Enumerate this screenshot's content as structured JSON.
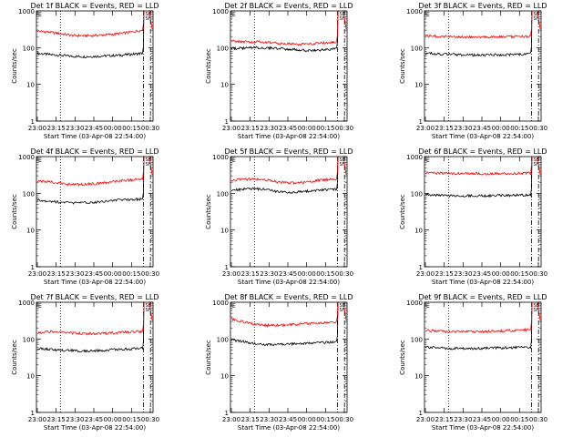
{
  "chart_data": [
    {
      "type": "line",
      "title": "Det 1f BLACK = Events, RED = LLD",
      "xlabel": "Start Time (03-Apr-08 22:54:00)",
      "ylabel": "Counts/sec",
      "x_ticklabels": [
        "23:00",
        "23:15",
        "23:30",
        "23:45",
        "00:00",
        "00:15",
        "00:30"
      ],
      "y_ticklabels": [
        "1",
        "10",
        "100",
        "1000"
      ],
      "yscale": "log",
      "ylim": [
        1,
        1000
      ],
      "series": [
        {
          "name": "Events",
          "color": "#000000",
          "values": [
            70,
            65,
            62,
            58,
            57,
            58,
            60,
            62,
            66,
            70
          ]
        },
        {
          "name": "LLD",
          "color": "#ff0000",
          "values": [
            280,
            265,
            240,
            215,
            210,
            215,
            225,
            240,
            265,
            300
          ]
        }
      ],
      "legend_marks": [
        "SE",
        "SF"
      ]
    },
    {
      "type": "line",
      "title": "Det 2f BLACK = Events, RED = LLD",
      "xlabel": "Start Time (03-Apr-08 22:54:00)",
      "ylabel": "Counts/sec",
      "x_ticklabels": [
        "23:00",
        "23:15",
        "23:30",
        "23:45",
        "00:00",
        "00:15",
        "00:30"
      ],
      "y_ticklabels": [
        "1",
        "10",
        "100",
        "1000"
      ],
      "yscale": "log",
      "ylim": [
        1,
        1000
      ],
      "series": [
        {
          "name": "Events",
          "color": "#000000",
          "values": [
            95,
            97,
            100,
            98,
            95,
            90,
            85,
            82,
            88,
            92
          ]
        },
        {
          "name": "LLD",
          "color": "#ff0000",
          "values": [
            150,
            145,
            145,
            140,
            130,
            125,
            125,
            128,
            135,
            140
          ]
        }
      ],
      "legend_marks": [
        "SE",
        "SF"
      ]
    },
    {
      "type": "line",
      "title": "Det 3f BLACK = Events, RED = LLD",
      "xlabel": "Start Time (03-Apr-08 22:54:00)",
      "ylabel": "Counts/sec",
      "x_ticklabels": [
        "23:00",
        "23:15",
        "23:30",
        "23:45",
        "00:00",
        "00:15",
        "00:30"
      ],
      "y_ticklabels": [
        "1",
        "10",
        "100",
        "1000"
      ],
      "yscale": "log",
      "ylim": [
        1,
        1000
      ],
      "series": [
        {
          "name": "Events",
          "color": "#000000",
          "values": [
            70,
            68,
            66,
            64,
            63,
            63,
            64,
            65,
            66,
            68
          ]
        },
        {
          "name": "LLD",
          "color": "#ff0000",
          "values": [
            210,
            205,
            200,
            195,
            195,
            195,
            195,
            200,
            200,
            205
          ]
        }
      ],
      "legend_marks": [
        "SE",
        "SF"
      ]
    },
    {
      "type": "line",
      "title": "Det 4f BLACK = Events, RED = LLD",
      "xlabel": "Start Time (03-Apr-08 22:54:00)",
      "ylabel": "Counts/sec",
      "x_ticklabels": [
        "23:00",
        "23:15",
        "23:30",
        "23:45",
        "00:00",
        "00:15",
        "00:30"
      ],
      "y_ticklabels": [
        "1",
        "10",
        "100",
        "1000"
      ],
      "yscale": "log",
      "ylim": [
        1,
        1000
      ],
      "series": [
        {
          "name": "Events",
          "color": "#000000",
          "values": [
            65,
            62,
            57,
            55,
            55,
            58,
            62,
            66,
            68,
            70
          ]
        },
        {
          "name": "LLD",
          "color": "#ff0000",
          "values": [
            220,
            205,
            185,
            175,
            175,
            185,
            200,
            215,
            230,
            245
          ]
        }
      ],
      "legend_marks": [
        "SE",
        "SF"
      ]
    },
    {
      "type": "line",
      "title": "Det 5f BLACK = Events, RED = LLD",
      "xlabel": "Start Time (03-Apr-08 22:54:00)",
      "ylabel": "Counts/sec",
      "x_ticklabels": [
        "23:00",
        "23:15",
        "23:30",
        "23:45",
        "00:00",
        "00:15",
        "00:30"
      ],
      "y_ticklabels": [
        "1",
        "10",
        "100",
        "1000"
      ],
      "yscale": "log",
      "ylim": [
        1,
        1000
      ],
      "series": [
        {
          "name": "Events",
          "color": "#000000",
          "values": [
            120,
            130,
            135,
            125,
            110,
            105,
            110,
            120,
            125,
            130
          ]
        },
        {
          "name": "LLD",
          "color": "#ff0000",
          "values": [
            230,
            240,
            245,
            230,
            205,
            190,
            195,
            215,
            235,
            250
          ]
        }
      ],
      "legend_marks": [
        "SE",
        "SF"
      ]
    },
    {
      "type": "line",
      "title": "Det 6f BLACK = Events, RED = LLD",
      "xlabel": "Start Time (03-Apr-08 22:54:00)",
      "ylabel": "Counts/sec",
      "x_ticklabels": [
        "23:00",
        "23:15",
        "23:30",
        "23:45",
        "00:00",
        "00:15",
        "00:30"
      ],
      "y_ticklabels": [
        "1",
        "10",
        "100",
        "1000"
      ],
      "yscale": "log",
      "ylim": [
        1,
        1000
      ],
      "series": [
        {
          "name": "Events",
          "color": "#000000",
          "values": [
            92,
            90,
            88,
            86,
            86,
            86,
            87,
            88,
            89,
            90
          ]
        },
        {
          "name": "LLD",
          "color": "#ff0000",
          "values": [
            360,
            355,
            350,
            345,
            345,
            345,
            345,
            348,
            350,
            352
          ]
        }
      ],
      "legend_marks": [
        "SE",
        "SF"
      ]
    },
    {
      "type": "line",
      "title": "Det 7f BLACK = Events, RED = LLD",
      "xlabel": "Start Time (03-Apr-08 22:54:00)",
      "ylabel": "Counts/sec",
      "x_ticklabels": [
        "23:00",
        "23:15",
        "23:30",
        "23:45",
        "00:00",
        "00:15",
        "00:30"
      ],
      "y_ticklabels": [
        "1",
        "10",
        "100",
        "1000"
      ],
      "yscale": "log",
      "ylim": [
        1,
        1000
      ],
      "series": [
        {
          "name": "Events",
          "color": "#000000",
          "values": [
            55,
            52,
            50,
            48,
            47,
            48,
            50,
            52,
            54,
            56
          ]
        },
        {
          "name": "LLD",
          "color": "#ff0000",
          "values": [
            150,
            160,
            155,
            145,
            140,
            140,
            145,
            150,
            155,
            160
          ]
        }
      ],
      "legend_marks": [
        "SE",
        "SF"
      ]
    },
    {
      "type": "line",
      "title": "Det 8f BLACK = Events, RED = LLD",
      "xlabel": "Start Time (03-Apr-08 22:54:00)",
      "ylabel": "Counts/sec",
      "x_ticklabels": [
        "23:00",
        "23:15",
        "23:30",
        "23:45",
        "00:00",
        "00:15",
        "00:30"
      ],
      "y_ticklabels": [
        "1",
        "10",
        "100",
        "1000"
      ],
      "yscale": "log",
      "ylim": [
        1,
        1000
      ],
      "series": [
        {
          "name": "Events",
          "color": "#000000",
          "values": [
            95,
            85,
            75,
            70,
            70,
            72,
            75,
            78,
            80,
            82
          ]
        },
        {
          "name": "LLD",
          "color": "#ff0000",
          "values": [
            350,
            290,
            250,
            235,
            235,
            245,
            255,
            265,
            275,
            285
          ]
        }
      ],
      "legend_marks": [
        "SE",
        "SF"
      ]
    },
    {
      "type": "line",
      "title": "Det 9f BLACK = Events, RED = LLD",
      "xlabel": "Start Time (03-Apr-08 22:54:00)",
      "ylabel": "Counts/sec",
      "x_ticklabels": [
        "23:00",
        "23:15",
        "23:30",
        "23:45",
        "00:00",
        "00:15",
        "00:30"
      ],
      "y_ticklabels": [
        "1",
        "10",
        "100",
        "1000"
      ],
      "yscale": "log",
      "ylim": [
        1,
        1000
      ],
      "series": [
        {
          "name": "Events",
          "color": "#000000",
          "values": [
            60,
            58,
            56,
            55,
            55,
            56,
            57,
            58,
            59,
            60
          ]
        },
        {
          "name": "LLD",
          "color": "#ff0000",
          "values": [
            170,
            165,
            160,
            158,
            158,
            160,
            163,
            168,
            175,
            180
          ]
        }
      ],
      "legend_marks": [
        "SE",
        "SF"
      ]
    }
  ]
}
